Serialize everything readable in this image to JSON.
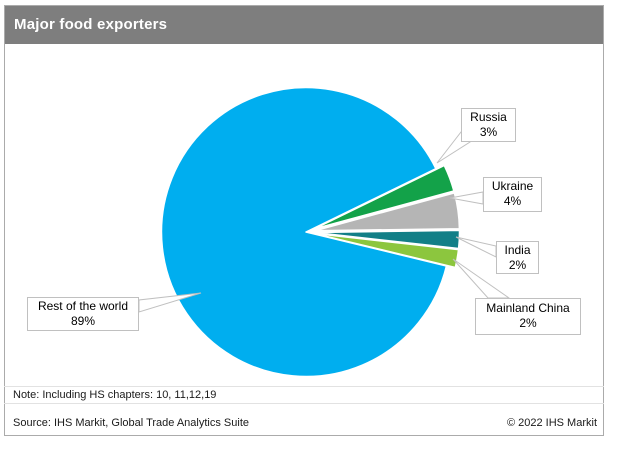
{
  "header": {
    "title": "Major food exporters"
  },
  "chart_data": {
    "type": "pie",
    "title": "Major food exporters",
    "slices": [
      {
        "label": "Russia",
        "value": 3,
        "pct_label": "3%",
        "color": "#13a249",
        "exploded": true
      },
      {
        "label": "Ukraine",
        "value": 4,
        "pct_label": "4%",
        "color": "#b5b5b5",
        "exploded": true
      },
      {
        "label": "India",
        "value": 2,
        "pct_label": "2%",
        "color": "#127f87",
        "exploded": true
      },
      {
        "label": "Mainland China",
        "value": 2,
        "pct_label": "2%",
        "color": "#8cc63e",
        "exploded": true
      },
      {
        "label": "Rest of the world",
        "value": 89,
        "pct_label": "89%",
        "color": "#00aeef",
        "exploded": false
      }
    ],
    "start_angle_deg": -26,
    "direction": "clockwise",
    "legend_position": "callout-labels",
    "grid": false
  },
  "footer": {
    "note": "Note: Including HS chapters: 10, 11,12,19",
    "source": "Source: IHS Markit, Global Trade Analytics Suite",
    "copyright": "© 2022 IHS Markit"
  },
  "colors": {
    "title_bar": "#7e7e7e",
    "frame_border": "#ababab",
    "callout_border": "#c0c0c0",
    "leader_line": "#c0c0c0"
  }
}
